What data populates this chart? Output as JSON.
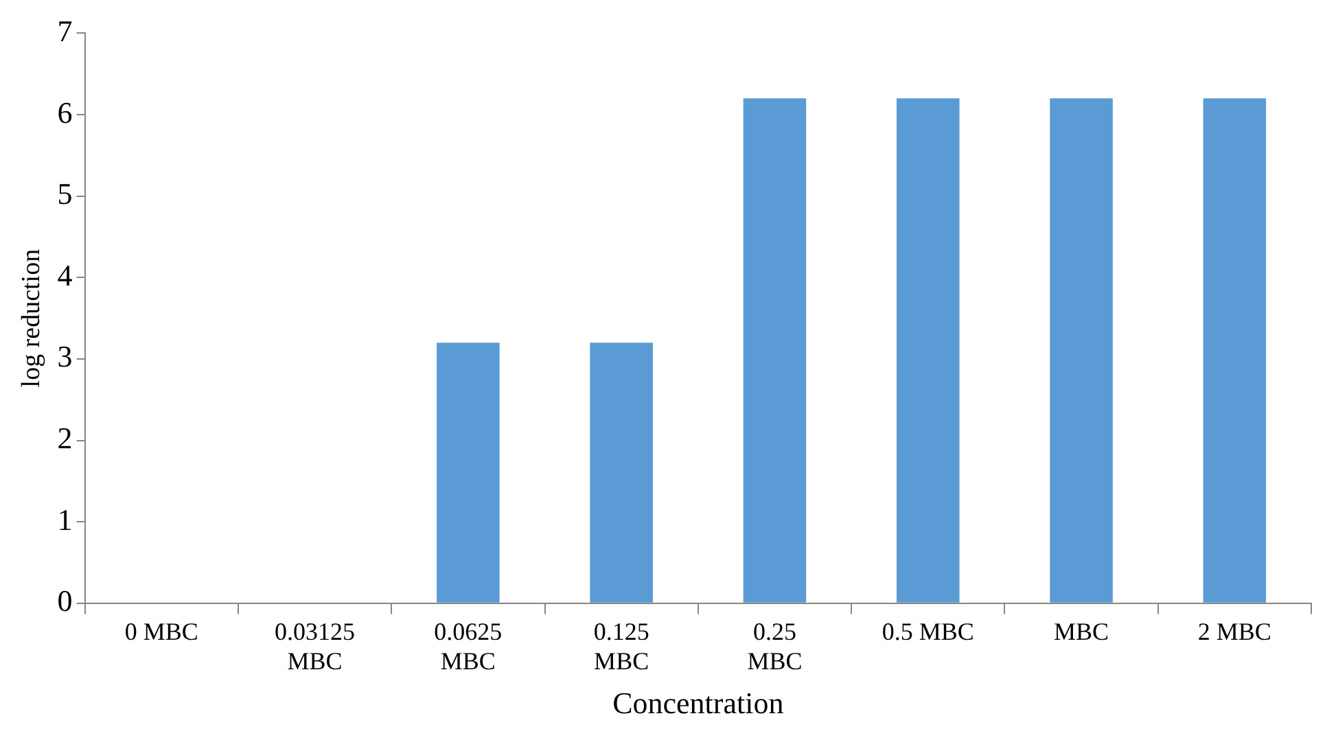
{
  "chart_data": {
    "type": "bar",
    "xlabel": "Concentration",
    "ylabel": "log reduction",
    "categories": [
      "0 MBC",
      "0.03125 MBC",
      "0.0625 MBC",
      "0.125 MBC",
      "0.25 MBC",
      "0.5 MBC",
      "MBC",
      "2 MBC"
    ],
    "values": [
      0,
      0,
      3.2,
      3.2,
      6.2,
      6.2,
      6.2,
      6.2
    ],
    "color": "#5b9bd5",
    "ylim": [
      0,
      7
    ],
    "yticks": [
      0,
      1,
      2,
      3,
      4,
      5,
      6,
      7
    ],
    "grid": false,
    "legend": false
  }
}
